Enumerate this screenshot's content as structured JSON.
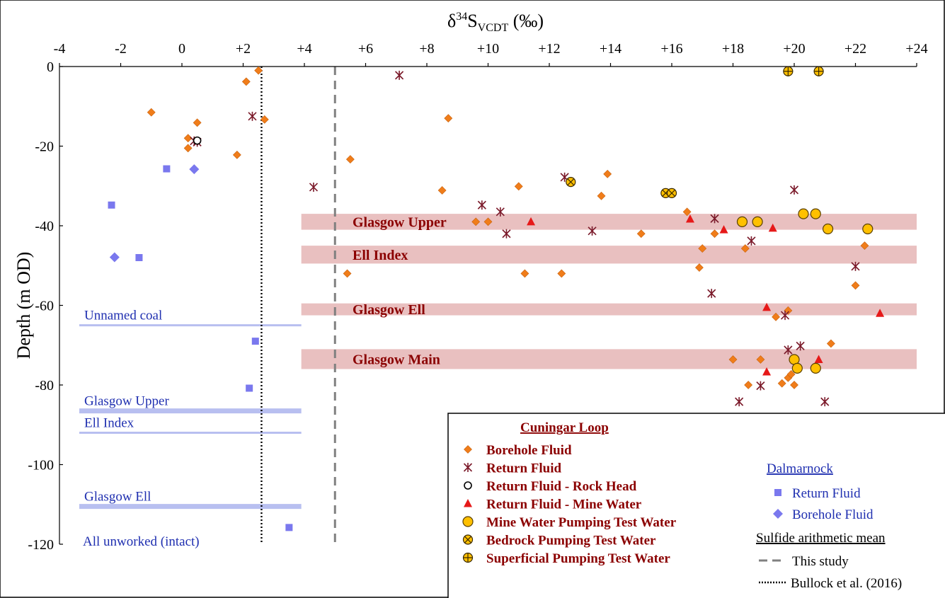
{
  "chart_data": {
    "type": "scatter",
    "xlabel": "δ34SVCDT (‰)",
    "xlabel_parts": {
      "delta": "δ",
      "sup": "34",
      "S": "S",
      "sub": "VCDT",
      "unit": " (‰)"
    },
    "ylabel": "Depth (m OD)",
    "xlim": [
      -4,
      24
    ],
    "ylim": [
      -120,
      0
    ],
    "x_ticks": [
      "-4",
      "-2",
      "0",
      "+2",
      "+4",
      "+6",
      "+8",
      "+10",
      "+12",
      "+14",
      "+16",
      "+18",
      "+20",
      "+22",
      "+24"
    ],
    "y_ticks": [
      "0",
      "-20",
      "-40",
      "-60",
      "-80",
      "-100",
      "-120"
    ],
    "grid": false,
    "legend_placement": "bottom-right",
    "colors": {
      "borehole": "#f07d1a",
      "return": "#7b1a2a",
      "mine": "#e61919",
      "pumping": "#ffc000",
      "dalmarnock": "#7a78ee",
      "seam_band": "#e9c0c0",
      "dal_line": "#b8bff0",
      "seam_text": "#8b0000",
      "dal_text": "#1f2fb0"
    },
    "seam_bands": [
      {
        "label": "Glasgow Upper",
        "y": [
          -41,
          -37
        ]
      },
      {
        "label": "Ell Index",
        "y": [
          -49.5,
          -45
        ]
      },
      {
        "label": "Glasgow Ell",
        "y": [
          -62.5,
          -59.5
        ]
      },
      {
        "label": "Glasgow Main",
        "y": [
          -76,
          -71
        ]
      }
    ],
    "dalmarnock_seams": [
      {
        "label": "Unnamed coal",
        "y": -65,
        "thick": false
      },
      {
        "label": "Glasgow Upper",
        "y": -86.5,
        "thick": true
      },
      {
        "label": "Ell Index",
        "y": -92,
        "thick": false
      },
      {
        "label": "Glasgow Ell",
        "y": -110.5,
        "thick": true
      },
      {
        "label": "All unworked (intact)",
        "y": null,
        "thick": false
      }
    ],
    "mean_lines": [
      {
        "name": "This study",
        "x": 5.0,
        "style": "dashed"
      },
      {
        "name": "Bullock et al. (2016)",
        "x": 2.6,
        "style": "dotted"
      }
    ],
    "series": [
      {
        "name": "Borehole Fluid",
        "group": "Cuningar Loop",
        "marker": "diamond-orange",
        "points": [
          [
            2.5,
            -1
          ],
          [
            2.1,
            -3.8
          ],
          [
            -1,
            -11.5
          ],
          [
            2.7,
            -13.3
          ],
          [
            0.5,
            -14.1
          ],
          [
            8.7,
            -13
          ],
          [
            0.2,
            -18
          ],
          [
            0.2,
            -20.5
          ],
          [
            1.8,
            -22.2
          ],
          [
            5.5,
            -23.3
          ],
          [
            13.9,
            -27
          ],
          [
            11,
            -30.1
          ],
          [
            8.5,
            -31.1
          ],
          [
            13.7,
            -32.5
          ],
          [
            9.6,
            -39
          ],
          [
            10,
            -39
          ],
          [
            16.5,
            -36.5
          ],
          [
            15,
            -42
          ],
          [
            17.4,
            -42
          ],
          [
            17,
            -45.7
          ],
          [
            18.4,
            -45.7
          ],
          [
            22.3,
            -45
          ],
          [
            16.9,
            -50.5
          ],
          [
            5.4,
            -52
          ],
          [
            11.2,
            -52
          ],
          [
            12.4,
            -52
          ],
          [
            22,
            -55
          ],
          [
            19.8,
            -61.3
          ],
          [
            19.4,
            -62.9
          ],
          [
            21.2,
            -69.6
          ],
          [
            18,
            -73.6
          ],
          [
            18.9,
            -73.6
          ],
          [
            19.8,
            -78.2
          ],
          [
            19.9,
            -77.3
          ],
          [
            19.6,
            -79.6
          ],
          [
            20,
            -80
          ],
          [
            18.5,
            -80
          ]
        ]
      },
      {
        "name": "Return Fluid",
        "group": "Cuningar Loop",
        "marker": "asterisk",
        "points": [
          [
            7.1,
            -2.2
          ],
          [
            2.3,
            -12.5
          ],
          [
            0.4,
            -18.7
          ],
          [
            0.5,
            -19
          ],
          [
            4.3,
            -30.3
          ],
          [
            12.5,
            -27.8
          ],
          [
            9.8,
            -34.8
          ],
          [
            10.4,
            -36.5
          ],
          [
            10.6,
            -42
          ],
          [
            13.4,
            -41.3
          ],
          [
            17.4,
            -38.2
          ],
          [
            20,
            -31
          ],
          [
            18.6,
            -43.8
          ],
          [
            22,
            -50.2
          ],
          [
            17.3,
            -57
          ],
          [
            19.7,
            -62.5
          ],
          [
            19.8,
            -71.2
          ],
          [
            20.2,
            -70.2
          ],
          [
            18.9,
            -80.2
          ],
          [
            18.2,
            -84.2
          ],
          [
            21,
            -84.2
          ]
        ]
      },
      {
        "name": "Return Fluid - Rock Head",
        "group": "Cuningar Loop",
        "marker": "open-circle",
        "points": [
          [
            0.5,
            -18.6
          ]
        ]
      },
      {
        "name": "Return Fluid - Mine Water",
        "group": "Cuningar Loop",
        "marker": "triangle",
        "points": [
          [
            11.4,
            -39
          ],
          [
            16.6,
            -38.3
          ],
          [
            17.7,
            -41
          ],
          [
            19.3,
            -40.6
          ],
          [
            19.1,
            -60.5
          ],
          [
            22.8,
            -62
          ],
          [
            19.1,
            -76.7
          ],
          [
            20.8,
            -73.6
          ]
        ]
      },
      {
        "name": "Mine Water Pumping Test Water",
        "group": "Cuningar Loop",
        "marker": "circle-yellow",
        "points": [
          [
            18.3,
            -39
          ],
          [
            18.8,
            -39
          ],
          [
            20.3,
            -37
          ],
          [
            20.7,
            -37
          ],
          [
            21.1,
            -40.8
          ],
          [
            22.4,
            -40.8
          ],
          [
            20,
            -73.6
          ],
          [
            20.1,
            -75.8
          ],
          [
            20.7,
            -75.8
          ]
        ]
      },
      {
        "name": "Bedrock Pumping Test Water",
        "group": "Cuningar Loop",
        "marker": "circle-x",
        "points": [
          [
            12.7,
            -29
          ],
          [
            15.8,
            -31.8
          ],
          [
            16,
            -31.8
          ]
        ]
      },
      {
        "name": "Superficial Pumping Test Water",
        "group": "Cuningar Loop",
        "marker": "circle-plus",
        "points": [
          [
            19.8,
            -1.2
          ],
          [
            20.8,
            -1.2
          ]
        ]
      },
      {
        "name": "Return Fluid",
        "group": "Dalmarnock",
        "marker": "square",
        "points": [
          [
            -0.5,
            -25.7
          ],
          [
            -2.3,
            -34.8
          ],
          [
            -1.4,
            -48
          ],
          [
            2.4,
            -69
          ],
          [
            2.2,
            -80.8
          ],
          [
            3.5,
            -115.8
          ]
        ]
      },
      {
        "name": "Borehole Fluid",
        "group": "Dalmarnock",
        "marker": "diamond-blue",
        "points": [
          [
            0.4,
            -25.8
          ],
          [
            -2.2,
            -47.9
          ]
        ]
      }
    ],
    "legend": {
      "cuningar_title": "Cuningar Loop",
      "dalmarnock_title": "Dalmarnock",
      "mean_title": "Sulfide arithmetic mean",
      "cuningar_items": [
        "Borehole Fluid",
        "Return Fluid",
        "Return Fluid - Rock Head",
        "Return Fluid - Mine Water",
        "Mine Water Pumping Test Water",
        "Bedrock Pumping Test Water",
        "Superficial Pumping Test Water"
      ],
      "dalmarnock_items": [
        "Return Fluid",
        "Borehole Fluid"
      ],
      "mean_items": [
        "This study",
        "Bullock et al. (2016)"
      ]
    }
  }
}
